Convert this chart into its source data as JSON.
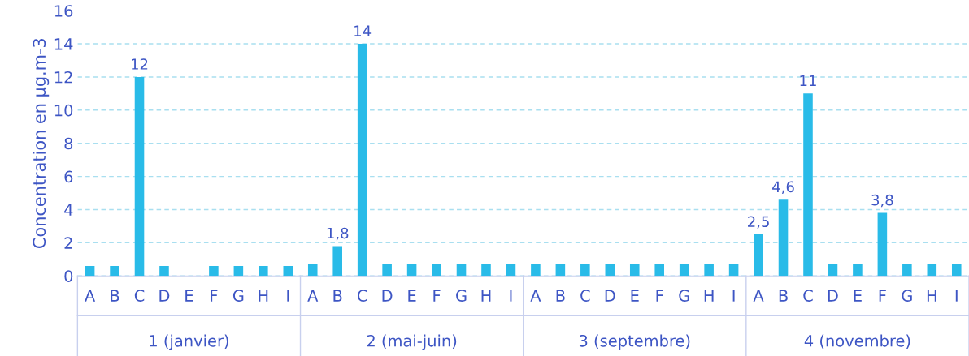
{
  "chart_data": {
    "type": "bar",
    "ylabel": "Concentration en µg.m-3",
    "categories": [
      "A",
      "B",
      "C",
      "D",
      "E",
      "F",
      "G",
      "H",
      "I",
      "A",
      "B",
      "C",
      "D",
      "E",
      "F",
      "G",
      "H",
      "I",
      "A",
      "B",
      "C",
      "D",
      "E",
      "F",
      "G",
      "H",
      "I",
      "A",
      "B",
      "C",
      "D",
      "E",
      "F",
      "G",
      "H",
      "I"
    ],
    "values": [
      0.6,
      0.6,
      12,
      0.6,
      null,
      0.6,
      0.6,
      0.6,
      0.6,
      0.7,
      1.8,
      14,
      0.7,
      0.7,
      0.7,
      0.7,
      0.7,
      0.7,
      0.7,
      0.7,
      0.7,
      0.7,
      0.7,
      0.7,
      0.7,
      0.7,
      0.7,
      2.5,
      4.6,
      11,
      0.7,
      0.7,
      3.8,
      0.7,
      0.7,
      0.7
    ],
    "value_labels": [
      null,
      null,
      "12",
      null,
      null,
      null,
      null,
      null,
      null,
      null,
      "1,8",
      "14",
      null,
      null,
      null,
      null,
      null,
      null,
      null,
      null,
      null,
      null,
      null,
      null,
      null,
      null,
      null,
      "2,5",
      "4,6",
      "11",
      null,
      null,
      "3,8",
      null,
      null,
      null
    ],
    "annotations": [
      "1 (janvier)",
      "2 (mai-juin)",
      "3 (septembre)",
      "4 (novembre)"
    ],
    "color": "#29bbe8",
    "ylim": [
      0,
      16
    ],
    "yticks": [
      0,
      2,
      4,
      6,
      8,
      10,
      12,
      14,
      16
    ],
    "grid": "y",
    "legend": false
  }
}
